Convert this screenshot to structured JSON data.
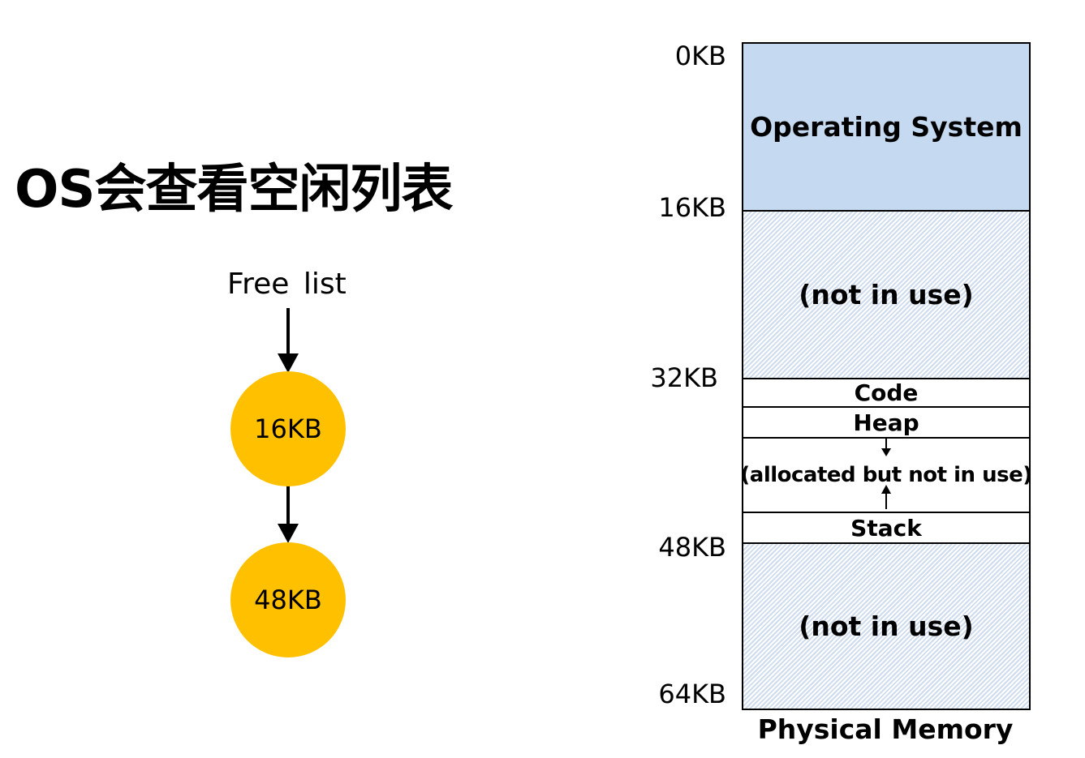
{
  "title": "OS会查看空闲列表",
  "free_list": {
    "label": "Free list",
    "nodes": [
      "16KB",
      "48KB"
    ],
    "node_color": "#FFC000"
  },
  "memory": {
    "label": "Physical Memory",
    "addresses": [
      "0KB",
      "16KB",
      "32KB",
      "48KB",
      "64KB"
    ],
    "segments": {
      "os": "Operating System",
      "free1": "(not in use)",
      "code": "Code",
      "heap": "Heap",
      "allocated": "(allocated but not in use)",
      "stack": "Stack",
      "free2": "(not in use)"
    },
    "os_color": "#C5D9F1"
  }
}
